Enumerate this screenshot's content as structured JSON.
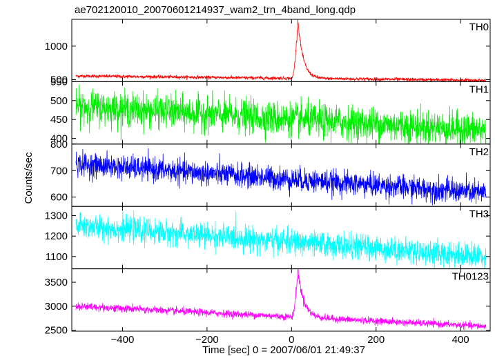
{
  "chart_data": {
    "type": "line",
    "title": "ae702120010_20070601214937_wam2_trn_4band_long.qdp",
    "xlabel": "Time [sec] 0 = 2007/06/01 21:49:37",
    "ylabel": "Counts/sec",
    "xlim": [
      -520,
      470
    ],
    "x_data_range": [
      -510,
      460
    ],
    "xticks": [
      -400,
      -200,
      0,
      200,
      400
    ],
    "grid": false,
    "legend": "none",
    "panels": [
      {
        "name": "TH0",
        "color": "#ff0000",
        "ylim": [
          470,
          1400
        ],
        "yticks": [
          500,
          1000
        ],
        "baseline_start": 555,
        "baseline_end": 490,
        "noise": 12,
        "burst": {
          "peak_time": 15,
          "peak_value": 1400,
          "rise_start": 0,
          "decay": 12
        }
      },
      {
        "name": "TH1",
        "color": "#00ee00",
        "ylim": [
          385,
          550
        ],
        "yticks": [
          400,
          450,
          500,
          550
        ],
        "baseline_start": 485,
        "baseline_end": 420,
        "noise": 22,
        "burst": null
      },
      {
        "name": "TH2",
        "color": "#0000ff",
        "ylim": [
          565,
          800
        ],
        "yticks": [
          600,
          700,
          800
        ],
        "baseline_start": 725,
        "baseline_end": 615,
        "noise": 22,
        "burst": null
      },
      {
        "name": "TH3",
        "color": "#00ffff",
        "ylim": [
          1040,
          1345
        ],
        "yticks": [
          1100,
          1200,
          1300
        ],
        "baseline_start": 1250,
        "baseline_end": 1100,
        "noise": 30,
        "burst": null
      },
      {
        "name": "TH0123",
        "color": "#ff00ff",
        "ylim": [
          2480,
          3780
        ],
        "yticks": [
          2500,
          3000,
          3500
        ],
        "baseline_start": 3000,
        "baseline_end": 2580,
        "noise": 35,
        "burst": {
          "peak_time": 15,
          "peak_value": 3760,
          "rise_start": 0,
          "decay": 14
        }
      }
    ]
  }
}
